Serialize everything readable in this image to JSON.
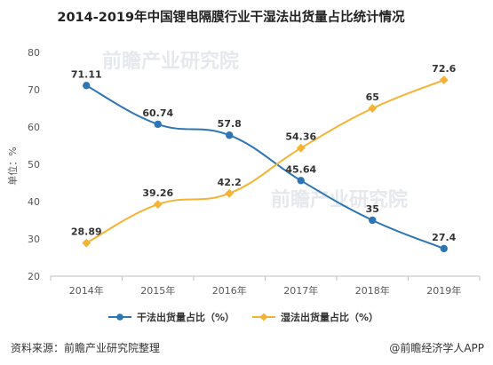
{
  "chart_data": {
    "type": "line",
    "title": "2014-2019年中国锂电隔膜行业干湿法出货量占比统计情况",
    "ylabel": "单位：%",
    "categories": [
      "2014年",
      "2015年",
      "2016年",
      "2017年",
      "2018年",
      "2019年"
    ],
    "ylim": [
      20,
      80
    ],
    "yticks": [
      20,
      30,
      40,
      50,
      60,
      70,
      80
    ],
    "grid": false,
    "legend_position": "bottom",
    "series": [
      {
        "name": "干法出货量占比（%）",
        "color": "#2e75b6",
        "values": [
          71.11,
          60.74,
          57.8,
          45.64,
          35,
          27.4
        ]
      },
      {
        "name": "湿法出货量占比（%）",
        "color": "#f5b335",
        "values": [
          28.89,
          39.26,
          42.2,
          54.36,
          65,
          72.6
        ]
      }
    ]
  },
  "footer": {
    "source": "资料来源：前瞻产业研究院整理",
    "brand": "@前瞻经济学人APP"
  },
  "watermark": {
    "text": "前瞻产业研究院"
  }
}
